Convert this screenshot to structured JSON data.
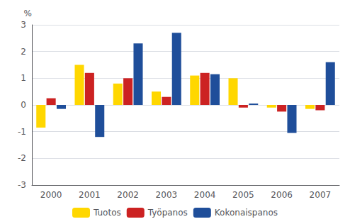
{
  "chart_data": {
    "type": "bar",
    "categories": [
      "2000",
      "2001",
      "2002",
      "2003",
      "2004",
      "2005",
      "2006",
      "2007"
    ],
    "series": [
      {
        "name": "Tuotos",
        "color": "#FFD700",
        "values": [
          -0.85,
          1.5,
          0.8,
          0.5,
          1.1,
          1.0,
          -0.1,
          -0.15
        ]
      },
      {
        "name": "Työpanos",
        "color": "#CC2222",
        "values": [
          0.25,
          1.2,
          1.0,
          0.3,
          1.2,
          -0.1,
          -0.25,
          -0.2
        ]
      },
      {
        "name": "Kokonaispanos",
        "color": "#1F4E9A",
        "values": [
          -0.15,
          -1.2,
          2.3,
          2.7,
          1.15,
          0.05,
          -1.05,
          1.6
        ]
      }
    ],
    "ylabel": "%",
    "ylim": [
      -3,
      3
    ],
    "yticks": [
      -3,
      -2,
      -1,
      0,
      1,
      2,
      3
    ],
    "grid": true,
    "legend": "bottom"
  }
}
